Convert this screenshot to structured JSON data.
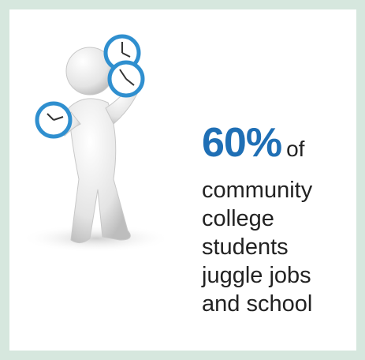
{
  "stat": {
    "value": "60%",
    "suffix": "of"
  },
  "lines": [
    "community",
    "college",
    "students",
    "juggle jobs",
    "and school"
  ]
}
